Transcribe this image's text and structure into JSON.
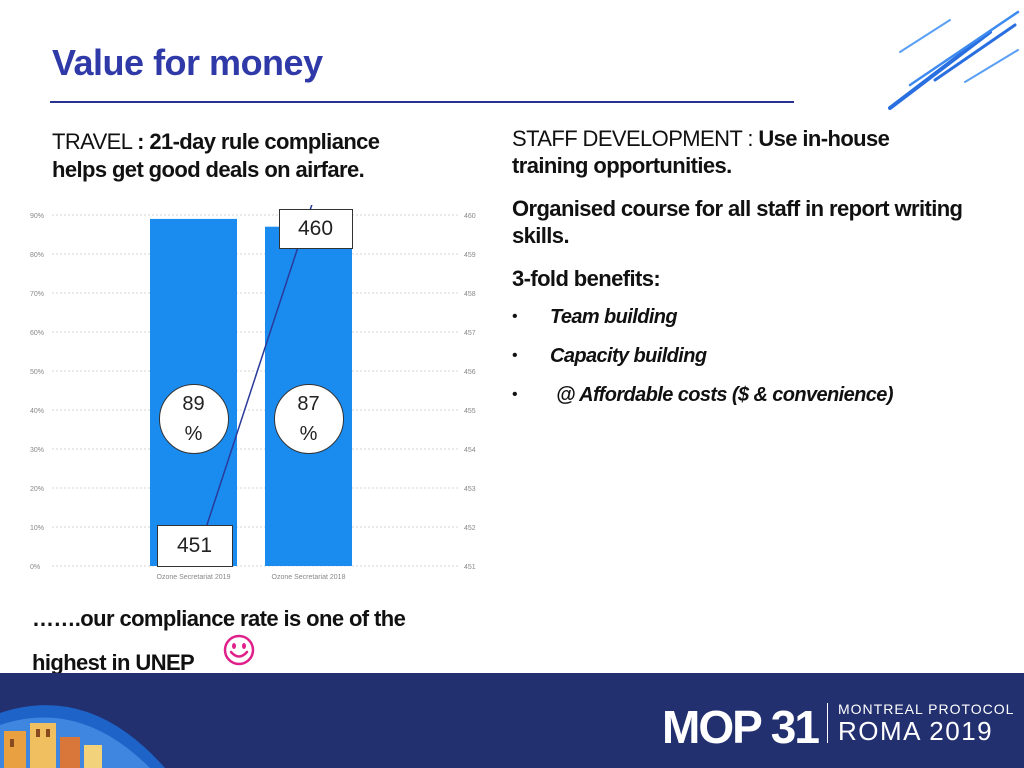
{
  "slide": {
    "title": "Value for money"
  },
  "travel": {
    "label": "TRAVEL",
    "separator": ":",
    "text_line1": "21-day rule compliance",
    "text_line2": "helps get good deals on airfare."
  },
  "staff": {
    "label": "STAFF DEVELOPMENT : ",
    "text_inline": "Use in-house",
    "text_line2": "training opportunities.",
    "course": "Organised course for all staff in report writing skills.",
    "benefits_heading": "3-fold benefits:",
    "bullet_char": "•",
    "benefits": [
      "Team building",
      "Capacity building",
      "@ Affordable costs ($ & convenience)"
    ]
  },
  "chart_data": {
    "type": "bar",
    "categories": [
      "Ozone Secretariat 2019",
      "Ozone Secretariat 2018"
    ],
    "series": [
      {
        "values": [
          89,
          87
        ],
        "axis": "left",
        "style": "bar",
        "color": "#1a8cf0"
      },
      {
        "values": [
          451,
          460
        ],
        "axis": "right",
        "style": "line",
        "color": "#2a3a9a"
      }
    ],
    "left_axis": {
      "ticks": [
        "0%",
        "10%",
        "20%",
        "30%",
        "40%",
        "50%",
        "60%",
        "70%",
        "80%",
        "90%"
      ],
      "range": [
        0,
        90
      ]
    },
    "right_axis": {
      "ticks": [
        "451",
        "452",
        "453",
        "454",
        "455",
        "456",
        "457",
        "458",
        "459",
        "460"
      ],
      "range": [
        451,
        460
      ]
    },
    "bar_callouts": [
      {
        "top": "89",
        "bottom": "%"
      },
      {
        "top": "87",
        "bottom": "%"
      }
    ],
    "line_callouts": [
      "451",
      "460"
    ],
    "grid": true
  },
  "footer": {
    "text_line1": "…….our compliance rate is one of the",
    "text_line2": "highest in UNEP",
    "emoji": "smiley",
    "mop": "MOP 31",
    "protocol": "MONTREAL PROTOCOL",
    "roma": "ROMA  2019",
    "band_color": "#23306f"
  }
}
